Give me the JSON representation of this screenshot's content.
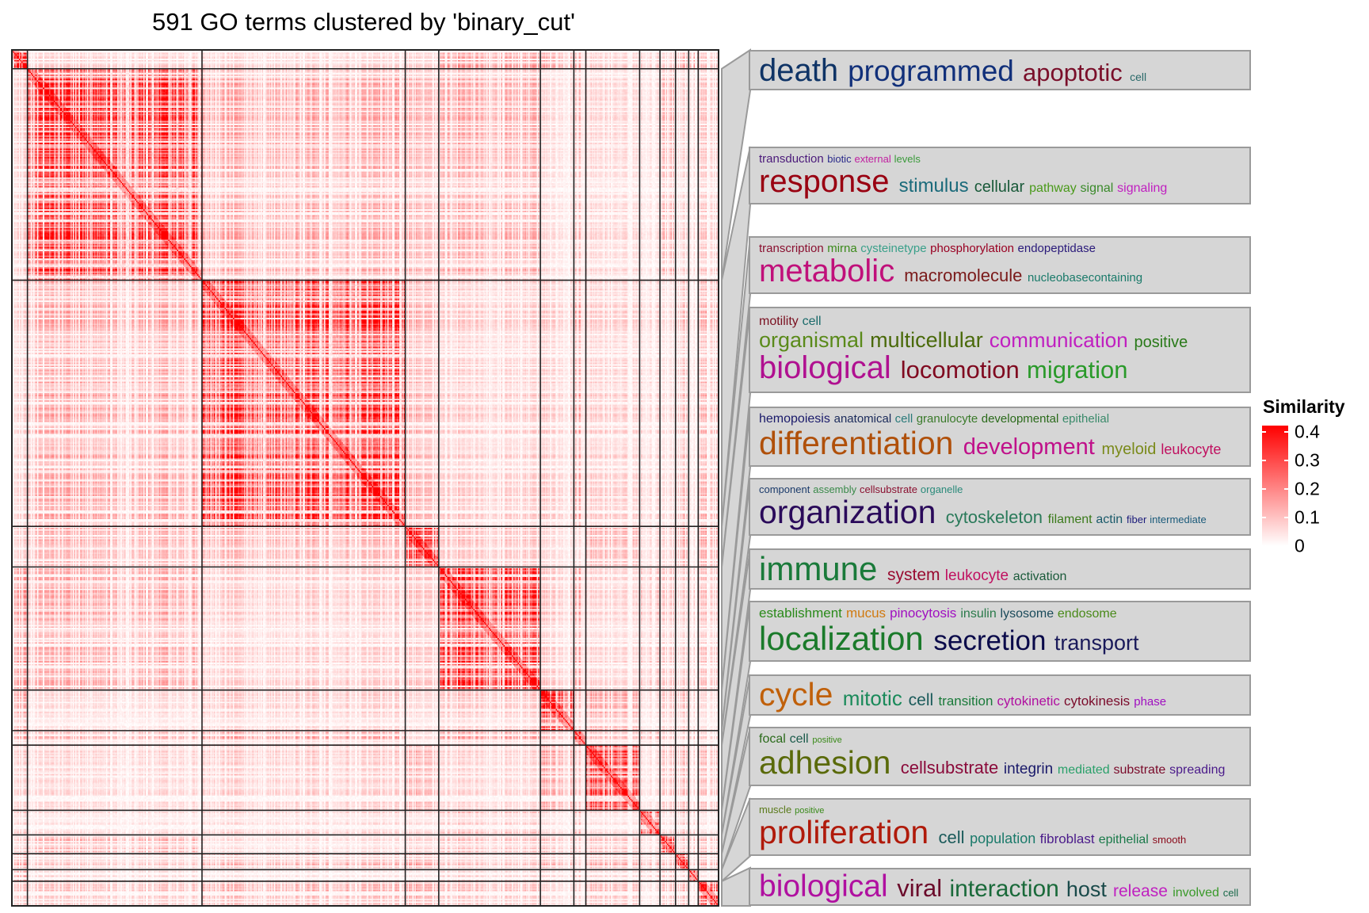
{
  "chart_data": {
    "type": "heatmap",
    "title": "591 GO terms clustered by 'binary_cut'",
    "n_terms": 591,
    "cluster_sizes": [
      13,
      146,
      170,
      28,
      85,
      28,
      10,
      45,
      17,
      13,
      11,
      8,
      17
    ],
    "legend": {
      "title": "Similarity",
      "ticks": [
        "0.4",
        "0.3",
        "0.2",
        "0.1",
        "0"
      ],
      "range": [
        0,
        0.4
      ],
      "low_color": "#ffffff",
      "high_color": "#ff0000",
      "placement": "right"
    },
    "word_clouds": [
      {
        "cluster": 2,
        "lines": [
          [
            {
              "text": "death",
              "color": "#0f3466",
              "w": 40
            },
            {
              "text": "programmed",
              "color": "#11307a",
              "w": 37
            },
            {
              "text": "apoptotic",
              "color": "#7a0f2a",
              "w": 31
            },
            {
              "text": "cell",
              "color": "#2a6a6a",
              "w": 14
            }
          ]
        ]
      },
      {
        "cluster": 3,
        "lines": [
          [
            {
              "text": "transduction",
              "color": "#4b1a7a",
              "w": 15
            },
            {
              "text": "biotic",
              "color": "#2a2a8a",
              "w": 13
            },
            {
              "text": "external",
              "color": "#c020a0",
              "w": 13
            },
            {
              "text": "levels",
              "color": "#3a9a3a",
              "w": 13
            }
          ],
          [
            {
              "text": "response",
              "color": "#990011",
              "w": 40
            },
            {
              "text": "stimulus",
              "color": "#1a6a7a",
              "w": 24
            },
            {
              "text": "cellular",
              "color": "#1a5a3a",
              "w": 20
            },
            {
              "text": "pathway",
              "color": "#4a9a1a",
              "w": 16
            },
            {
              "text": "signal",
              "color": "#3a8a2a",
              "w": 16
            },
            {
              "text": "signaling",
              "color": "#c020c0",
              "w": 16
            }
          ]
        ]
      },
      {
        "cluster": 4,
        "lines": [
          [
            {
              "text": "transcription",
              "color": "#8a1030",
              "w": 15
            },
            {
              "text": "mirna",
              "color": "#3a8a1a",
              "w": 15
            },
            {
              "text": "cysteinetype",
              "color": "#3aa08a",
              "w": 15
            },
            {
              "text": "phosphorylation",
              "color": "#990022",
              "w": 15
            },
            {
              "text": "endopeptidase",
              "color": "#2a1a7a",
              "w": 15
            }
          ],
          [
            {
              "text": "metabolic",
              "color": "#c0107a",
              "w": 40
            },
            {
              "text": "macromolecule",
              "color": "#7a1a1a",
              "w": 22
            },
            {
              "text": "nucleobasecontaining",
              "color": "#1a7a6a",
              "w": 15
            }
          ]
        ]
      },
      {
        "cluster": 5,
        "lines": [
          [
            {
              "text": "motility",
              "color": "#7a1020",
              "w": 16
            },
            {
              "text": "cell",
              "color": "#1a6a6a",
              "w": 16
            }
          ],
          [
            {
              "text": "organismal",
              "color": "#5a8a1a",
              "w": 27
            },
            {
              "text": "multicellular",
              "color": "#4a6a0a",
              "w": 27
            },
            {
              "text": "communication",
              "color": "#c020c0",
              "w": 26
            },
            {
              "text": "positive",
              "color": "#2a7a1a",
              "w": 20
            }
          ],
          [
            {
              "text": "biological",
              "color": "#b01090",
              "w": 40
            },
            {
              "text": "locomotion",
              "color": "#800a20",
              "w": 31
            },
            {
              "text": "migration",
              "color": "#2a9a2a",
              "w": 31
            }
          ]
        ]
      },
      {
        "cluster": 6,
        "lines": [
          [
            {
              "text": "hemopoiesis",
              "color": "#1a1a6a",
              "w": 16
            },
            {
              "text": "anatomical",
              "color": "#1a2a5a",
              "w": 15
            },
            {
              "text": "cell",
              "color": "#2a7a7a",
              "w": 15
            },
            {
              "text": "granulocyte",
              "color": "#3a7a2a",
              "w": 15
            },
            {
              "text": "developmental",
              "color": "#2a6a1a",
              "w": 15
            },
            {
              "text": "epithelial",
              "color": "#3a8a6a",
              "w": 15
            }
          ],
          [
            {
              "text": "differentiation",
              "color": "#b0500a",
              "w": 41
            },
            {
              "text": "development",
              "color": "#c0108a",
              "w": 29
            },
            {
              "text": "myeloid",
              "color": "#7a8a1a",
              "w": 20
            },
            {
              "text": "leukocyte",
              "color": "#c01060",
              "w": 18
            }
          ]
        ]
      },
      {
        "cluster": 7,
        "lines": [
          [
            {
              "text": "component",
              "color": "#1a3a6a",
              "w": 13
            },
            {
              "text": "assembly",
              "color": "#3a8a4a",
              "w": 13
            },
            {
              "text": "cellsubstrate",
              "color": "#8a1030",
              "w": 13
            },
            {
              "text": "organelle",
              "color": "#2a8a7a",
              "w": 13
            }
          ],
          [
            {
              "text": "organization",
              "color": "#2a0a5a",
              "w": 41
            },
            {
              "text": "cytoskeleton",
              "color": "#2a7a5a",
              "w": 22
            },
            {
              "text": "filament",
              "color": "#3a7a1a",
              "w": 16
            },
            {
              "text": "actin",
              "color": "#1a5a6a",
              "w": 16
            },
            {
              "text": "fiber",
              "color": "#1a1a7a",
              "w": 13
            },
            {
              "text": "intermediate",
              "color": "#1a5a7a",
              "w": 13
            }
          ]
        ]
      },
      {
        "cluster": 8,
        "lines": [
          [
            {
              "text": "immune",
              "color": "#1a7a3a",
              "w": 42
            },
            {
              "text": "system",
              "color": "#990a30",
              "w": 21
            },
            {
              "text": "leukocyte",
              "color": "#c01060",
              "w": 19
            },
            {
              "text": "activation",
              "color": "#1a5a3a",
              "w": 16
            }
          ]
        ]
      },
      {
        "cluster": 9,
        "lines": [
          [
            {
              "text": "establishment",
              "color": "#2a8a1a",
              "w": 17
            },
            {
              "text": "mucus",
              "color": "#d07a10",
              "w": 17
            },
            {
              "text": "pinocytosis",
              "color": "#a010c0",
              "w": 17
            },
            {
              "text": "insulin",
              "color": "#2a7a4a",
              "w": 16
            },
            {
              "text": "lysosome",
              "color": "#1a4a5a",
              "w": 16
            },
            {
              "text": "endosome",
              "color": "#4a8a1a",
              "w": 16
            }
          ],
          [
            {
              "text": "localization",
              "color": "#1a7a2a",
              "w": 42
            },
            {
              "text": "secretion",
              "color": "#0a0a4a",
              "w": 35
            },
            {
              "text": "transport",
              "color": "#1a1a5a",
              "w": 27
            }
          ]
        ]
      },
      {
        "cluster": 10,
        "lines": [
          [
            {
              "text": "cycle",
              "color": "#c0600a",
              "w": 41
            },
            {
              "text": "mitotic",
              "color": "#1a8a5a",
              "w": 26
            },
            {
              "text": "cell",
              "color": "#1a5a5a",
              "w": 21
            },
            {
              "text": "transition",
              "color": "#1a7a3a",
              "w": 17
            },
            {
              "text": "cytokinetic",
              "color": "#b010a0",
              "w": 17
            },
            {
              "text": "cytokinesis",
              "color": "#7a0a2a",
              "w": 17
            },
            {
              "text": "phase",
              "color": "#a010c0",
              "w": 15
            }
          ]
        ]
      },
      {
        "cluster": 11,
        "lines": [
          [
            {
              "text": "focal",
              "color": "#2a6a1a",
              "w": 16
            },
            {
              "text": "cell",
              "color": "#1a5a4a",
              "w": 16
            },
            {
              "text": "positive",
              "color": "#3a8a1a",
              "w": 11
            }
          ],
          [
            {
              "text": "adhesion",
              "color": "#5a6a0a",
              "w": 41
            },
            {
              "text": "cellsubstrate",
              "color": "#8a0a3a",
              "w": 22
            },
            {
              "text": "integrin",
              "color": "#1a1a6a",
              "w": 19
            },
            {
              "text": "mediated",
              "color": "#2aa06a",
              "w": 16
            },
            {
              "text": "substrate",
              "color": "#7a0a2a",
              "w": 16
            },
            {
              "text": "spreading",
              "color": "#4a1a8a",
              "w": 16
            }
          ]
        ]
      },
      {
        "cluster": 12,
        "lines": [
          [
            {
              "text": "muscle",
              "color": "#5a7a1a",
              "w": 13
            },
            {
              "text": "positive",
              "color": "#3a8a1a",
              "w": 11
            }
          ],
          [
            {
              "text": "proliferation",
              "color": "#b01a0a",
              "w": 41
            },
            {
              "text": "cell",
              "color": "#1a5a5a",
              "w": 22
            },
            {
              "text": "population",
              "color": "#1a7a6a",
              "w": 18
            },
            {
              "text": "fibroblast",
              "color": "#4a1a8a",
              "w": 17
            },
            {
              "text": "epithelial",
              "color": "#1a7a4a",
              "w": 16
            },
            {
              "text": "smooth",
              "color": "#8a0a1a",
              "w": 13
            }
          ]
        ]
      },
      {
        "cluster": 13,
        "lines": [
          [
            {
              "text": "biological",
              "color": "#b010a0",
              "w": 39
            },
            {
              "text": "viral",
              "color": "#6a0a2a",
              "w": 31
            },
            {
              "text": "interaction",
              "color": "#1a6a3a",
              "w": 30
            },
            {
              "text": "host",
              "color": "#1a4a4a",
              "w": 27
            },
            {
              "text": "release",
              "color": "#c020c0",
              "w": 21
            },
            {
              "text": "involved",
              "color": "#3a9a2a",
              "w": 16
            },
            {
              "text": "cell",
              "color": "#1a6a4a",
              "w": 13
            }
          ]
        ]
      }
    ]
  }
}
